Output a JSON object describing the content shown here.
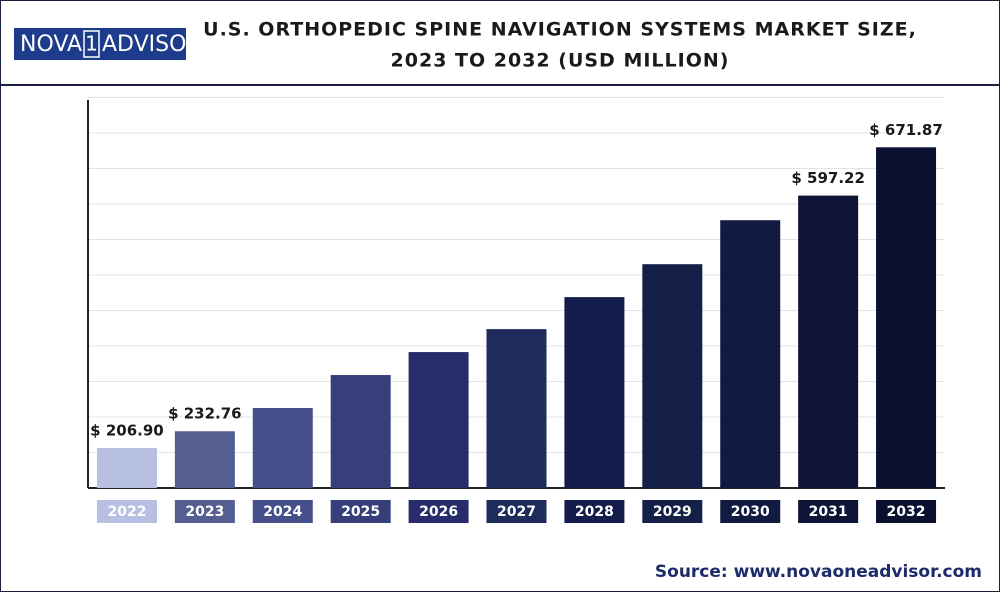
{
  "logo": {
    "left": "NOVA",
    "middle": "1",
    "right": "ADVISOR"
  },
  "chart_data": {
    "type": "bar",
    "title": [
      "U.S. ORTHOPEDIC SPINE NAVIGATION SYSTEMS MARKET SIZE,",
      "2023 TO 2032 (USD MILLION)"
    ],
    "categories": [
      "2022",
      "2023",
      "2024",
      "2025",
      "2026",
      "2027",
      "2028",
      "2029",
      "2030",
      "2031",
      "2032"
    ],
    "values": [
      206.9,
      232.76,
      268.7,
      319.7,
      355.2,
      390.7,
      440.2,
      491.1,
      559.1,
      597.22,
      671.87
    ],
    "value_labels": [
      "$ 206.90",
      "$ 232.76",
      null,
      null,
      null,
      null,
      null,
      null,
      null,
      "$ 597.22",
      "$ 671.87"
    ],
    "colors": [
      "#b7bfe3",
      "#545e91",
      "#454f8a",
      "#363f7a",
      "#262d6a",
      "#1f2b5a",
      "#141c4c",
      "#142047",
      "#111a40",
      "#0d1436",
      "#0a1030"
    ],
    "ylim": [
      145,
      745
    ],
    "grid": true
  },
  "source": "Source: www.novaoneadvisor.com"
}
